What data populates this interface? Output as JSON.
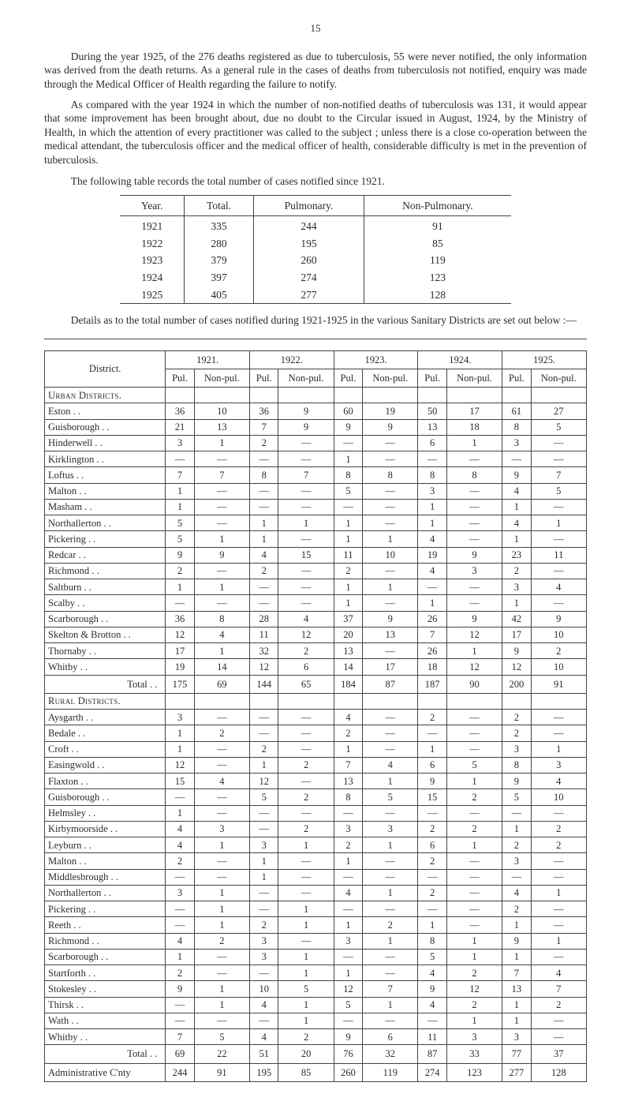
{
  "page_number": "15",
  "paragraphs": {
    "p1": "During the year 1925, of the 276 deaths registered as due to tuberculosis, 55 were never notified, the only information was derived from the death returns. As a general rule in the cases of deaths from tuberculosis not notified, enquiry was made through the Medical Officer of Health regarding the failure to notify.",
    "p2": "As compared with the year 1924 in which the number of non-notified deaths of tuberculosis was 131, it would appear that some improvement has been brought about, due no doubt to the Circular issued in August, 1924, by the Ministry of Health, in which the attention of every practitioner was called to the subject ; unless there is a close co-operation between the medical attendant, the tuberculosis officer and the medical officer of health, considerable difficulty is met in the prevention of tuberculosis.",
    "intro1": "The following table records the total number of cases notified since 1921.",
    "p3": "Details as to the total number of cases notified during 1921-1925 in the various Sanitary Districts are set out below :—"
  },
  "table1": {
    "headers": [
      "Year.",
      "Total.",
      "Pulmonary.",
      "Non-Pulmonary."
    ],
    "rows": [
      [
        "1921",
        "335",
        "244",
        "91"
      ],
      [
        "1922",
        "280",
        "195",
        "85"
      ],
      [
        "1923",
        "379",
        "260",
        "119"
      ],
      [
        "1924",
        "397",
        "274",
        "123"
      ],
      [
        "1925",
        "405",
        "277",
        "128"
      ]
    ]
  },
  "table2": {
    "district_label": "District.",
    "year_headers": [
      "1921.",
      "1922.",
      "1923.",
      "1924.",
      "1925."
    ],
    "sub_headers": [
      "Pul.",
      "Non-pul."
    ],
    "sections": {
      "urban": "Urban Districts.",
      "rural": "Rural Districts."
    },
    "urban_rows": [
      {
        "name": "Eston",
        "v": [
          "36",
          "10",
          "36",
          "9",
          "60",
          "19",
          "50",
          "17",
          "61",
          "27"
        ]
      },
      {
        "name": "Guisborough",
        "v": [
          "21",
          "13",
          "7",
          "9",
          "9",
          "9",
          "13",
          "18",
          "8",
          "5"
        ]
      },
      {
        "name": "Hinderwell",
        "v": [
          "3",
          "1",
          "2",
          "—",
          "—",
          "—",
          "6",
          "1",
          "3",
          "—"
        ]
      },
      {
        "name": "Kirklington",
        "v": [
          "—",
          "—",
          "—",
          "—",
          "1",
          "—",
          "—",
          "—",
          "—",
          "—"
        ]
      },
      {
        "name": "Loftus",
        "v": [
          "7",
          "7",
          "8",
          "7",
          "8",
          "8",
          "8",
          "8",
          "9",
          "7"
        ]
      },
      {
        "name": "Malton",
        "v": [
          "1",
          "—",
          "—",
          "—",
          "5",
          "—",
          "3",
          "—",
          "4",
          "5"
        ]
      },
      {
        "name": "Masham",
        "v": [
          "1",
          "—",
          "—",
          "—",
          "—",
          "—",
          "1",
          "—",
          "1",
          "—"
        ]
      },
      {
        "name": "Northallerton",
        "v": [
          "5",
          "—",
          "1",
          "1",
          "1",
          "—",
          "1",
          "—",
          "4",
          "1"
        ]
      },
      {
        "name": "Pickering",
        "v": [
          "5",
          "1",
          "1",
          "—",
          "1",
          "1",
          "4",
          "—",
          "1",
          "—"
        ]
      },
      {
        "name": "Redcar",
        "v": [
          "9",
          "9",
          "4",
          "15",
          "11",
          "10",
          "19",
          "9",
          "23",
          "11"
        ]
      },
      {
        "name": "Richmond",
        "v": [
          "2",
          "—",
          "2",
          "—",
          "2",
          "—",
          "4",
          "3",
          "2",
          "—"
        ]
      },
      {
        "name": "Saltburn",
        "v": [
          "1",
          "1",
          "—",
          "—",
          "1",
          "1",
          "—",
          "—",
          "3",
          "4"
        ]
      },
      {
        "name": "Scalby",
        "v": [
          "—",
          "—",
          "—",
          "—",
          "1",
          "—",
          "1",
          "—",
          "1",
          "—"
        ]
      },
      {
        "name": "Scarborough",
        "v": [
          "36",
          "8",
          "28",
          "4",
          "37",
          "9",
          "26",
          "9",
          "42",
          "9"
        ]
      },
      {
        "name": "Skelton & Brotton",
        "v": [
          "12",
          "4",
          "11",
          "12",
          "20",
          "13",
          "7",
          "12",
          "17",
          "10"
        ]
      },
      {
        "name": "Thornaby",
        "v": [
          "17",
          "1",
          "32",
          "2",
          "13",
          "—",
          "26",
          "1",
          "9",
          "2"
        ]
      },
      {
        "name": "Whitby",
        "v": [
          "19",
          "14",
          "12",
          "6",
          "14",
          "17",
          "18",
          "12",
          "12",
          "10"
        ]
      }
    ],
    "urban_total": {
      "name": "Total",
      "v": [
        "175",
        "69",
        "144",
        "65",
        "184",
        "87",
        "187",
        "90",
        "200",
        "91"
      ]
    },
    "rural_rows": [
      {
        "name": "Aysgarth",
        "v": [
          "3",
          "—",
          "—",
          "—",
          "4",
          "—",
          "2",
          "—",
          "2",
          "—"
        ]
      },
      {
        "name": "Bedale",
        "v": [
          "1",
          "2",
          "—",
          "—",
          "2",
          "—",
          "—",
          "—",
          "2",
          "—"
        ]
      },
      {
        "name": "Croft",
        "v": [
          "1",
          "—",
          "2",
          "—",
          "1",
          "—",
          "1",
          "—",
          "3",
          "1"
        ]
      },
      {
        "name": "Easingwold",
        "v": [
          "12",
          "—",
          "1",
          "2",
          "7",
          "4",
          "6",
          "5",
          "8",
          "3"
        ]
      },
      {
        "name": "Flaxton",
        "v": [
          "15",
          "4",
          "12",
          "—",
          "13",
          "1",
          "9",
          "1",
          "9",
          "4"
        ]
      },
      {
        "name": "Guisborough",
        "v": [
          "—",
          "—",
          "5",
          "2",
          "8",
          "5",
          "15",
          "2",
          "5",
          "10"
        ]
      },
      {
        "name": "Helmsley",
        "v": [
          "1",
          "—",
          "—",
          "—",
          "—",
          "—",
          "—",
          "—",
          "—",
          "—"
        ]
      },
      {
        "name": "Kirbymoorside",
        "v": [
          "4",
          "3",
          "—",
          "2",
          "3",
          "3",
          "2",
          "2",
          "1",
          "2"
        ]
      },
      {
        "name": "Leyburn",
        "v": [
          "4",
          "1",
          "3",
          "1",
          "2",
          "1",
          "6",
          "1",
          "2",
          "2"
        ]
      },
      {
        "name": "Malton",
        "v": [
          "2",
          "—",
          "1",
          "—",
          "1",
          "—",
          "2",
          "—",
          "3",
          "—"
        ]
      },
      {
        "name": "Middlesbrough",
        "v": [
          "—",
          "—",
          "1",
          "—",
          "—",
          "—",
          "—",
          "—",
          "—",
          "—"
        ]
      },
      {
        "name": "Northallerton",
        "v": [
          "3",
          "1",
          "—",
          "—",
          "4",
          "1",
          "2",
          "—",
          "4",
          "1"
        ]
      },
      {
        "name": "Pickering",
        "v": [
          "—",
          "1",
          "—",
          "1",
          "—",
          "—",
          "—",
          "—",
          "2",
          "—"
        ]
      },
      {
        "name": "Reeth",
        "v": [
          "—",
          "1",
          "2",
          "1",
          "1",
          "2",
          "1",
          "—",
          "1",
          "—"
        ]
      },
      {
        "name": "Richmond",
        "v": [
          "4",
          "2",
          "3",
          "—",
          "3",
          "1",
          "8",
          "1",
          "9",
          "1"
        ]
      },
      {
        "name": "Scarborough",
        "v": [
          "1",
          "—",
          "3",
          "1",
          "—",
          "—",
          "5",
          "1",
          "1",
          "—"
        ]
      },
      {
        "name": "Startforth",
        "v": [
          "2",
          "—",
          "—",
          "1",
          "1",
          "—",
          "4",
          "2",
          "7",
          "4"
        ]
      },
      {
        "name": "Stokesley",
        "v": [
          "9",
          "1",
          "10",
          "5",
          "12",
          "7",
          "9",
          "12",
          "13",
          "7"
        ]
      },
      {
        "name": "Thirsk",
        "v": [
          "—",
          "1",
          "4",
          "1",
          "5",
          "1",
          "4",
          "2",
          "1",
          "2"
        ]
      },
      {
        "name": "Wath",
        "v": [
          "—",
          "—",
          "—",
          "1",
          "—",
          "—",
          "—",
          "1",
          "1",
          "—"
        ]
      },
      {
        "name": "Whitby",
        "v": [
          "7",
          "5",
          "4",
          "2",
          "9",
          "6",
          "11",
          "3",
          "3",
          "—"
        ]
      }
    ],
    "rural_total": {
      "name": "Total",
      "v": [
        "69",
        "22",
        "51",
        "20",
        "76",
        "32",
        "87",
        "33",
        "77",
        "37"
      ]
    },
    "admin_total": {
      "name": "Administrative C'nty",
      "v": [
        "244",
        "91",
        "195",
        "85",
        "260",
        "119",
        "274",
        "123",
        "277",
        "128"
      ]
    }
  }
}
